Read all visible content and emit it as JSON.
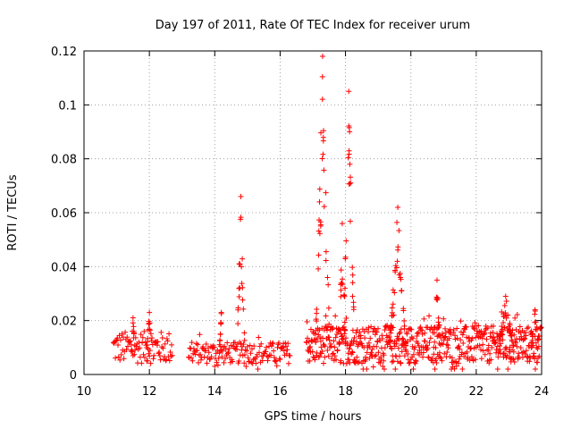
{
  "chart_data": {
    "type": "scatter",
    "title": "Day 197 of 2011, Rate Of TEC Index for receiver urum",
    "xlabel": "GPS time / hours",
    "ylabel": "ROTI / TECUs",
    "xlim": [
      10,
      24
    ],
    "ylim": [
      0,
      0.12
    ],
    "x_ticks": [
      "10",
      "12",
      "14",
      "16",
      "18",
      "20",
      "22",
      "24"
    ],
    "y_ticks": [
      "0",
      "0.02",
      "0.04",
      "0.06",
      "0.08",
      "0.1",
      "0.12"
    ],
    "grid": true,
    "marker": "+",
    "color": "#ff0000",
    "segments": [
      {
        "start": 10.9,
        "end": 12.7,
        "step": 0.02,
        "base": 0.01,
        "spread": 0.006
      },
      {
        "start": 13.2,
        "end": 16.3,
        "step": 0.02,
        "base": 0.008,
        "spread": 0.004
      },
      {
        "start": 16.8,
        "end": 24.0,
        "step": 0.012,
        "base": 0.011,
        "spread": 0.007
      }
    ],
    "peaks": [
      {
        "x": 14.8,
        "y": 0.066,
        "width": 0.12
      },
      {
        "x": 17.3,
        "y": 0.118,
        "width": 0.22
      },
      {
        "x": 18.1,
        "y": 0.105,
        "width": 0.18
      },
      {
        "x": 17.9,
        "y": 0.056,
        "width": 0.1
      },
      {
        "x": 19.6,
        "y": 0.062,
        "width": 0.25
      },
      {
        "x": 20.8,
        "y": 0.035,
        "width": 0.1
      },
      {
        "x": 22.9,
        "y": 0.029,
        "width": 0.25
      },
      {
        "x": 14.2,
        "y": 0.023,
        "width": 0.06
      },
      {
        "x": 12.0,
        "y": 0.023,
        "width": 0.08
      },
      {
        "x": 11.5,
        "y": 0.021,
        "width": 0.06
      },
      {
        "x": 23.8,
        "y": 0.024,
        "width": 0.12
      }
    ]
  }
}
